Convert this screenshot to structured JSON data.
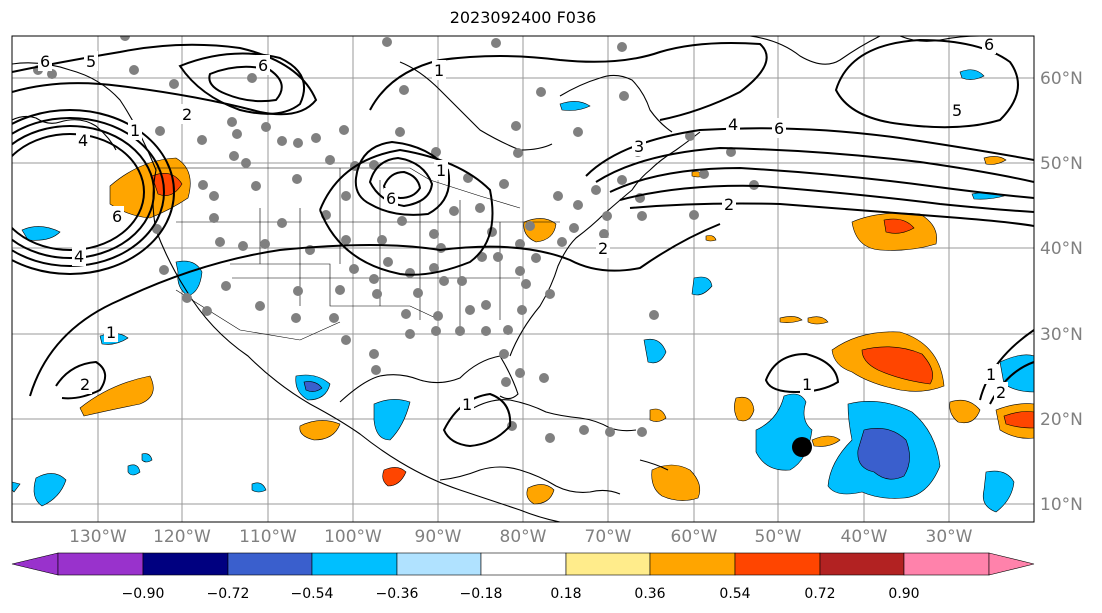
{
  "title": "2023092400 F036",
  "lon_labels": [
    "130°W",
    "120°W",
    "110°W",
    "100°W",
    "90°W",
    "80°W",
    "70°W",
    "60°W",
    "50°W",
    "40°W",
    "30°W"
  ],
  "lat_labels": [
    "60°N",
    "50°N",
    "40°N",
    "30°N",
    "20°N",
    "10°N"
  ],
  "colorbar": {
    "tick_labels": [
      "−0.90",
      "−0.72",
      "−0.54",
      "−0.36",
      "−0.18",
      "0.18",
      "0.36",
      "0.54",
      "0.72",
      "0.90"
    ],
    "colors": [
      "#9932CC",
      "#000080",
      "#3A5FCD",
      "#00BFFF",
      "#B0E2FF",
      "#FFFFFF",
      "#FFEC8B",
      "#FFA500",
      "#FF4500",
      "#B22222",
      "#FF82AB"
    ]
  },
  "contour_labels": [
    "6",
    "5",
    "6",
    "1",
    "2",
    "6",
    "3",
    "4",
    "6",
    "5",
    "6",
    "1",
    "2",
    "1",
    "4",
    "4",
    "6",
    "1",
    "1",
    "2",
    "1",
    "2",
    "1",
    "2"
  ],
  "colors": {
    "land_line": "#000000",
    "grid": "#999999",
    "station": "#808080",
    "marker": "#000000"
  }
}
